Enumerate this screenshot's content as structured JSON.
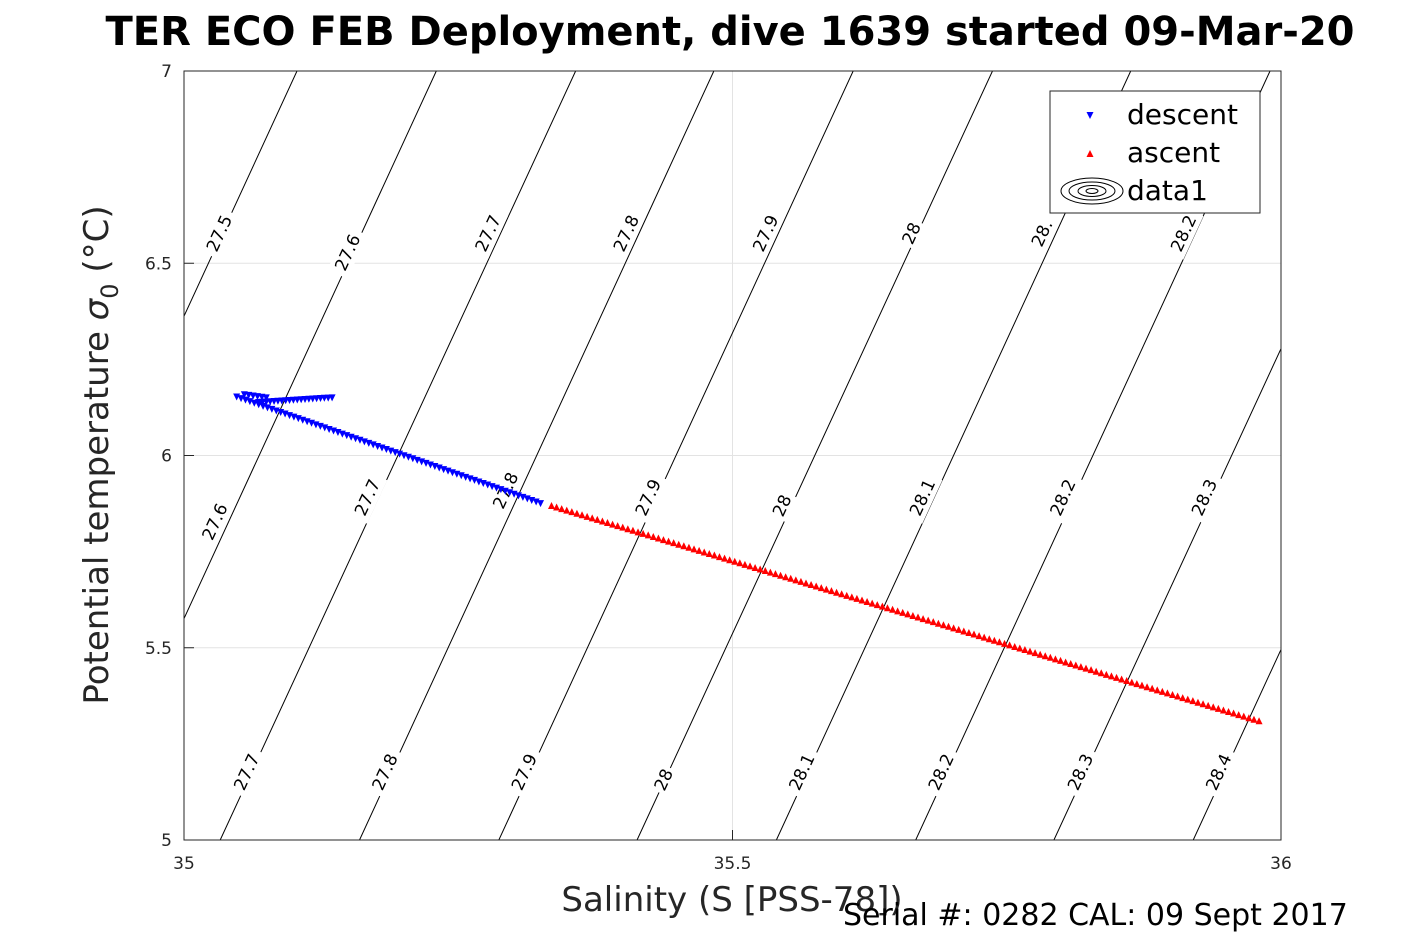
{
  "chart_data": {
    "type": "scatter",
    "title": "TER ECO FEB Deployment, dive 1639 started 09-Mar-20",
    "xlabel": "Salinity (S [PSS-78])",
    "ylabel_main": "Potential temperature ",
    "ylabel_symbol": "σ",
    "ylabel_sub": "0",
    "ylabel_unit": " (°C)",
    "xlim": [
      35,
      36
    ],
    "ylim": [
      5,
      7
    ],
    "x_ticks": [
      35,
      35.5,
      36
    ],
    "x_tick_labels": [
      "35",
      "35.5",
      "36"
    ],
    "y_ticks": [
      5,
      5.5,
      6,
      6.5,
      7
    ],
    "y_tick_labels": [
      "5",
      "5.5",
      "6",
      "6.5",
      "7"
    ],
    "grid": true,
    "legend_position": "top-right",
    "series": [
      {
        "name": "descent",
        "marker": "triangle-down",
        "color": "#0000ff",
        "segments": [
          {
            "start": [
              35.048,
              6.152
            ],
            "end": [
              35.325,
              5.875
            ],
            "n": 70
          },
          {
            "start": [
              35.068,
              6.138
            ],
            "end": [
              35.135,
              6.15
            ],
            "n": 20
          },
          {
            "start": [
              35.055,
              6.158
            ],
            "end": [
              35.075,
              6.15
            ],
            "n": 6
          }
        ]
      },
      {
        "name": "ascent",
        "marker": "triangle-up",
        "color": "#ff0000",
        "segments": [
          {
            "start": [
              35.335,
              5.87
            ],
            "end": [
              35.98,
              5.31
            ],
            "n": 140
          }
        ]
      },
      {
        "name": "data1",
        "marker": "contour",
        "color": "#000000"
      }
    ],
    "contours": {
      "levels": [
        27.5,
        27.6,
        27.7,
        27.8,
        27.9,
        28.0,
        28.1,
        28.2,
        28.3,
        28.4
      ],
      "lines": [
        {
          "level": 27.5,
          "x_at_y5": 34.78,
          "x_at_y7": 35.103
        },
        {
          "level": 27.6,
          "x_at_y5": 34.907,
          "x_at_y7": 35.23
        },
        {
          "level": 27.7,
          "x_at_y5": 35.033,
          "x_at_y7": 35.357
        },
        {
          "level": 27.8,
          "x_at_y5": 35.16,
          "x_at_y7": 35.483
        },
        {
          "level": 27.9,
          "x_at_y5": 35.287,
          "x_at_y7": 35.61
        },
        {
          "level": 28.0,
          "x_at_y5": 35.413,
          "x_at_y7": 35.737
        },
        {
          "level": 28.1,
          "x_at_y5": 35.54,
          "x_at_y7": 35.863
        },
        {
          "level": 28.2,
          "x_at_y5": 35.667,
          "x_at_y7": 35.99
        },
        {
          "level": 28.3,
          "x_at_y5": 35.793,
          "x_at_y7": 36.117
        },
        {
          "level": 28.4,
          "x_at_y5": 35.92,
          "x_at_y7": 36.243
        }
      ],
      "labels": [
        {
          "text": "27.5",
          "s": 35.032,
          "t": 6.578
        },
        {
          "text": "27.6",
          "s": 35.149,
          "t": 6.528
        },
        {
          "text": "27.7",
          "s": 35.277,
          "t": 6.578
        },
        {
          "text": "27.8",
          "s": 35.403,
          "t": 6.578
        },
        {
          "text": "27.9",
          "s": 35.53,
          "t": 6.578
        },
        {
          "text": "28",
          "s": 35.663,
          "t": 6.578
        },
        {
          "text": "28.",
          "s": 35.782,
          "t": 6.578
        },
        {
          "text": "28.2",
          "s": 35.911,
          "t": 6.578
        },
        {
          "text": "27.6",
          "s": 35.028,
          "t": 5.828
        },
        {
          "text": "27.7",
          "s": 35.167,
          "t": 5.891
        },
        {
          "text": "27.8",
          "s": 35.293,
          "t": 5.909
        },
        {
          "text": "27.9",
          "s": 35.423,
          "t": 5.891
        },
        {
          "text": "28",
          "s": 35.545,
          "t": 5.87
        },
        {
          "text": "28.1",
          "s": 35.673,
          "t": 5.891
        },
        {
          "text": "28.2",
          "s": 35.801,
          "t": 5.891
        },
        {
          "text": "28.3",
          "s": 35.93,
          "t": 5.891
        },
        {
          "text": "27.7",
          "s": 35.057,
          "t": 5.177
        },
        {
          "text": "27.8",
          "s": 35.183,
          "t": 5.177
        },
        {
          "text": "27.9",
          "s": 35.31,
          "t": 5.177
        },
        {
          "text": "28",
          "s": 35.437,
          "t": 5.157
        },
        {
          "text": "28.1",
          "s": 35.563,
          "t": 5.177
        },
        {
          "text": "28.2",
          "s": 35.69,
          "t": 5.177
        },
        {
          "text": "28.3",
          "s": 35.817,
          "t": 5.177
        },
        {
          "text": "28.4",
          "s": 35.943,
          "t": 5.177
        }
      ]
    }
  },
  "footer": {
    "text": "Serial #: 0282  CAL: 09 Sept 2017"
  }
}
